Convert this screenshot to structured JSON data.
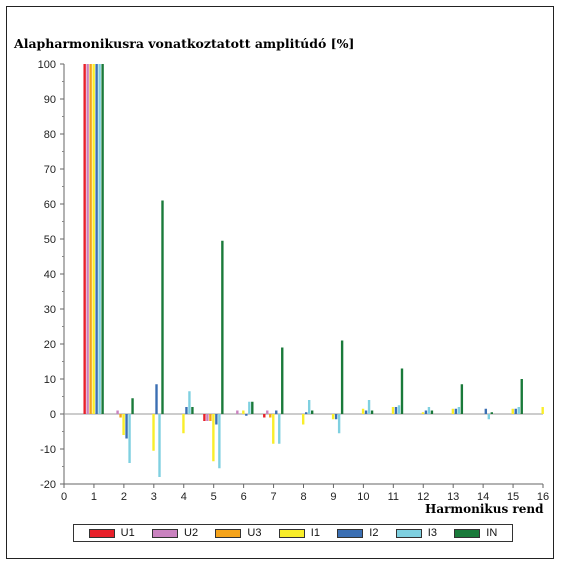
{
  "chart_data": {
    "type": "bar",
    "title": "Alapharmonikusra vonatkoztatott amplitúdó [%]",
    "xlabel": "Harmonikus rend",
    "ylabel": "",
    "categories": [
      "1",
      "2",
      "3",
      "4",
      "5",
      "6",
      "7",
      "8",
      "9",
      "10",
      "11",
      "12",
      "13",
      "14",
      "15",
      "16"
    ],
    "x_ticks": [
      "0",
      "1",
      "2",
      "3",
      "4",
      "5",
      "6",
      "7",
      "8",
      "9",
      "10",
      "11",
      "12",
      "13",
      "14",
      "15",
      "16"
    ],
    "y_ticks": [
      "-20",
      "-10",
      "0",
      "10",
      "20",
      "30",
      "40",
      "50",
      "60",
      "70",
      "80",
      "90",
      "100"
    ],
    "xlim": [
      0,
      16
    ],
    "ylim": [
      -20,
      100
    ],
    "grid": false,
    "legend_position": "bottom",
    "series": [
      {
        "name": "U1",
        "color": "#e8202a",
        "values": [
          100,
          0,
          0,
          0,
          -2,
          0,
          -1,
          0,
          0,
          0,
          0,
          0,
          0,
          0,
          0,
          0
        ]
      },
      {
        "name": "U2",
        "color": "#c982bf",
        "values": [
          100,
          1,
          0,
          0,
          -2,
          1,
          1,
          0,
          0,
          0,
          0,
          0,
          0,
          0,
          0,
          0
        ]
      },
      {
        "name": "U3",
        "color": "#f5a31a",
        "values": [
          100,
          -1,
          0,
          0,
          -2,
          0,
          -1,
          0,
          0,
          0,
          0,
          0,
          0,
          0,
          0,
          0
        ]
      },
      {
        "name": "I1",
        "color": "#f9ee2a",
        "values": [
          100,
          -6,
          -10.5,
          -5.5,
          -13.5,
          1,
          -8.5,
          -3,
          -1.5,
          1.5,
          2,
          0.5,
          1.5,
          0,
          1.5,
          2
        ]
      },
      {
        "name": "I2",
        "color": "#3b6fb3",
        "values": [
          100,
          -7,
          8.5,
          2,
          -3,
          -0.5,
          1,
          0.5,
          -1.5,
          1,
          2,
          1,
          1.5,
          1.5,
          1.5,
          0
        ]
      },
      {
        "name": "I3",
        "color": "#7fd0e0",
        "values": [
          100,
          -14,
          -18,
          6.5,
          -15.5,
          3.5,
          -8.5,
          4,
          -5.5,
          4,
          2.5,
          2,
          2,
          -1.5,
          2,
          0
        ]
      },
      {
        "name": "IN",
        "color": "#1a7a3a",
        "values": [
          100,
          4.5,
          61,
          2,
          49.5,
          3.5,
          19,
          1,
          21,
          1,
          13,
          1,
          8.5,
          0.5,
          10,
          0
        ]
      }
    ]
  }
}
